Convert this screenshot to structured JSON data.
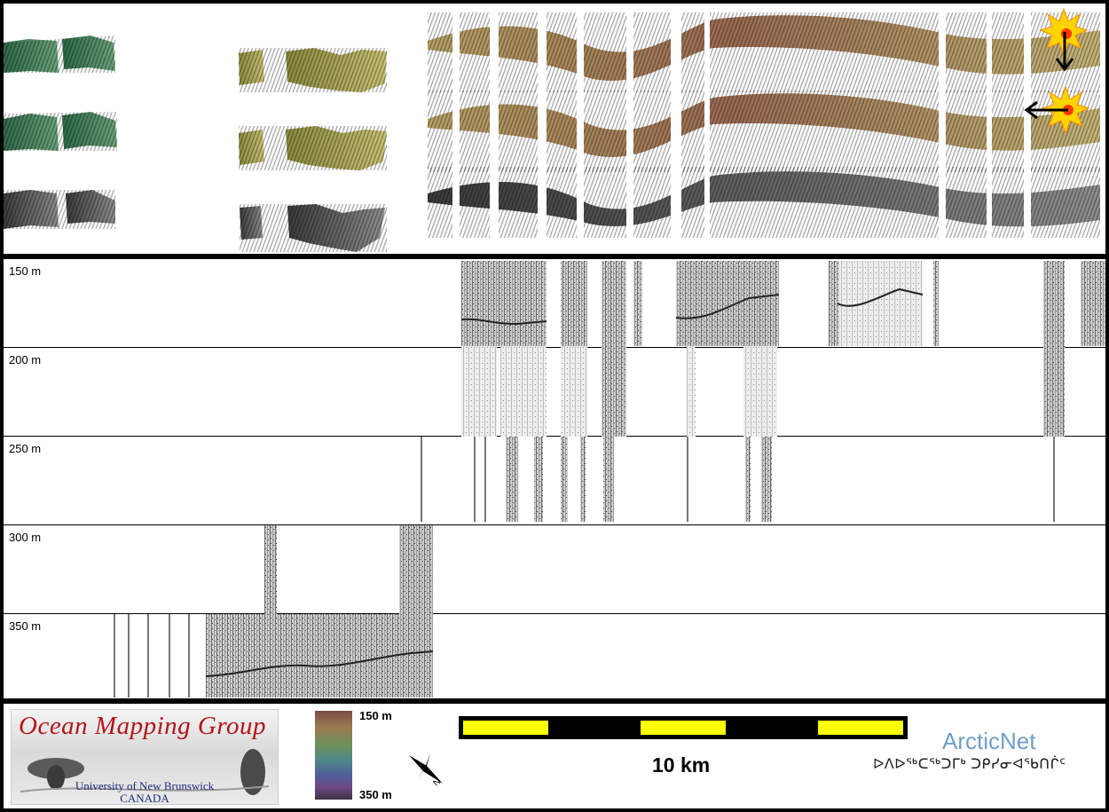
{
  "depth_rows": [
    {
      "label": "150 m"
    },
    {
      "label": "200 m"
    },
    {
      "label": "250 m"
    },
    {
      "label": "300 m"
    },
    {
      "label": "350 m"
    }
  ],
  "footer": {
    "logo_title": "Ocean Mapping Group",
    "logo_line1": "University of New Brunswick",
    "logo_line2": "CANADA",
    "colorbar_top": "150 m",
    "colorbar_bottom": "350 m",
    "scale_label": "10 km",
    "arctic_name": "ArcticNet",
    "arctic_syllabics": "ᐅᐱᐅᖅᑕᖅᑐᒥᒃ ᑐᑭᓯᓂᐊᖃᑎᒌᑦ"
  },
  "icons": {
    "sun_1": "sun-burst-icon",
    "sun_2": "sun-burst-icon",
    "arrow_down": "arrow-down-icon",
    "arrow_left": "arrow-left-icon",
    "north": "north-arrow-icon"
  },
  "colors": {
    "scale_yellow": "#ffff00",
    "logo_red": "#b3141b",
    "arctic_blue": "#6f9ec6"
  }
}
